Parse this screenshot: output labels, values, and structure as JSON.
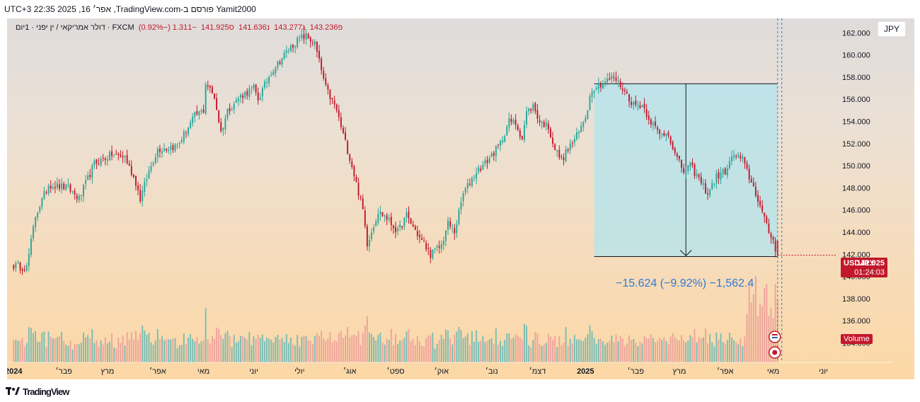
{
  "header": {
    "text": "Yamit2000 פורסם ב-TradingView.com, אפר׳ 16, 2025 22:35 UTC+3"
  },
  "legend": {
    "symbol": "דולר אמריקאי / ין יפני · 1יום · FXCM",
    "open_label": "פ",
    "open": "143.236",
    "high_label": "ג",
    "high": "143.277",
    "low_label": "נ",
    "low": "141.636",
    "close_label": "ס",
    "close": "141.925",
    "change": "−1.311 (−0.92%)"
  },
  "currency_button": "JPY",
  "price_tag": {
    "symbol": "USDJPY",
    "price": "141.925",
    "countdown": "01:24:03"
  },
  "volume_tag": "Volume",
  "measure": {
    "label": "−15.624 (−9.92%) −1,562.4"
  },
  "footer": {
    "brand": "TradingView"
  },
  "colors": {
    "up": "#26a69a",
    "down": "#c2182b",
    "vol_up": "#79bdb4",
    "vol_down": "#eea39b",
    "measure_fill": "#b2e4ee",
    "measure_line": "#131722",
    "cursor_line": "#2f7bd6"
  },
  "chart_data": {
    "type": "candlestick",
    "title": "",
    "xlabel": "",
    "ylabel": "",
    "ylim": [
      132.5,
      163.3
    ],
    "y_ticks": [
      134,
      136,
      138,
      140,
      142,
      144,
      146,
      148,
      150,
      152,
      154,
      156,
      158,
      160,
      162
    ],
    "y_tick_labels": [
      "134.000",
      "136.000",
      "138.000",
      "140.000",
      "142.000",
      "144.000",
      "146.000",
      "148.000",
      "150.000",
      "152.000",
      "154.000",
      "156.000",
      "158.000",
      "160.000",
      "162.000"
    ],
    "x_labels": [
      "2024",
      "פבר׳",
      "מרץ",
      "אפר׳",
      "מאי",
      "יוני",
      "יולי",
      "אוג׳",
      "ספט׳",
      "אוק׳",
      "נוב׳",
      "דצמ׳",
      "2025",
      "פבר׳",
      "מרץ",
      "אפר׳",
      "מאי",
      "יוני"
    ],
    "x_label_days": [
      0,
      23,
      43,
      66,
      87,
      110,
      131,
      154,
      175,
      196,
      219,
      240,
      262,
      285,
      305,
      326,
      348,
      371
    ],
    "x_range_days": [
      -3,
      377
    ],
    "waypoints": [
      [
        0,
        141.0
      ],
      [
        6,
        140.8
      ],
      [
        10,
        145.5
      ],
      [
        16,
        148.3
      ],
      [
        25,
        148.0
      ],
      [
        30,
        147.0
      ],
      [
        37,
        150.2
      ],
      [
        45,
        151.0
      ],
      [
        51,
        150.8
      ],
      [
        56,
        148.5
      ],
      [
        58,
        147.0
      ],
      [
        62,
        149.5
      ],
      [
        66,
        151.5
      ],
      [
        70,
        151.6
      ],
      [
        75,
        151.8
      ],
      [
        83,
        154.5
      ],
      [
        87,
        155.0
      ],
      [
        88,
        157.5
      ],
      [
        92,
        156.2
      ],
      [
        95,
        153.0
      ],
      [
        98,
        155.0
      ],
      [
        104,
        156.3
      ],
      [
        110,
        157.0
      ],
      [
        112,
        156.0
      ],
      [
        118,
        158.5
      ],
      [
        126,
        160.5
      ],
      [
        131,
        161.5
      ],
      [
        134,
        161.7
      ],
      [
        138,
        161.0
      ],
      [
        143,
        157.0
      ],
      [
        148,
        155.0
      ],
      [
        150,
        153.5
      ],
      [
        155,
        150.0
      ],
      [
        160,
        146.0
      ],
      [
        162,
        143.0
      ],
      [
        167,
        145.8
      ],
      [
        170,
        145.5
      ],
      [
        176,
        144.0
      ],
      [
        180,
        145.5
      ],
      [
        186,
        143.5
      ],
      [
        191,
        142.0
      ],
      [
        196,
        142.8
      ],
      [
        199,
        144.8
      ],
      [
        202,
        144.0
      ],
      [
        206,
        147.5
      ],
      [
        212,
        149.5
      ],
      [
        216,
        150.2
      ],
      [
        223,
        152.0
      ],
      [
        227,
        154.0
      ],
      [
        230,
        153.8
      ],
      [
        233,
        152.5
      ],
      [
        235,
        154.8
      ],
      [
        238,
        155.4
      ],
      [
        241,
        154.0
      ],
      [
        245,
        153.5
      ],
      [
        248,
        151.5
      ],
      [
        251,
        150.5
      ],
      [
        254,
        151.5
      ],
      [
        259,
        153.0
      ],
      [
        262,
        154.5
      ],
      [
        265,
        157.0
      ],
      [
        270,
        157.5
      ],
      [
        275,
        158.0
      ],
      [
        279,
        157.0
      ],
      [
        284,
        155.5
      ],
      [
        288,
        155.5
      ],
      [
        292,
        154.0
      ],
      [
        296,
        152.8
      ],
      [
        300,
        153.0
      ],
      [
        303,
        151.0
      ],
      [
        307,
        149.5
      ],
      [
        310,
        150.0
      ],
      [
        314,
        148.8
      ],
      [
        318,
        147.5
      ],
      [
        322,
        149.0
      ],
      [
        326,
        149.5
      ],
      [
        330,
        151.0
      ],
      [
        334,
        150.5
      ],
      [
        337,
        149.0
      ],
      [
        341,
        147.0
      ],
      [
        345,
        144.5
      ],
      [
        348,
        143.2
      ],
      [
        350,
        141.925
      ]
    ],
    "last": {
      "open": 143.236,
      "high": 143.277,
      "low": 141.636,
      "close": 141.925,
      "change": -1.311,
      "change_pct": -0.92
    },
    "measure_range": {
      "from_day": 266,
      "to_day": 350,
      "high": 157.4,
      "low": 141.8,
      "change": -15.624,
      "change_pct": -9.92,
      "ticks": -1562.4
    },
    "current_day": 350
  }
}
